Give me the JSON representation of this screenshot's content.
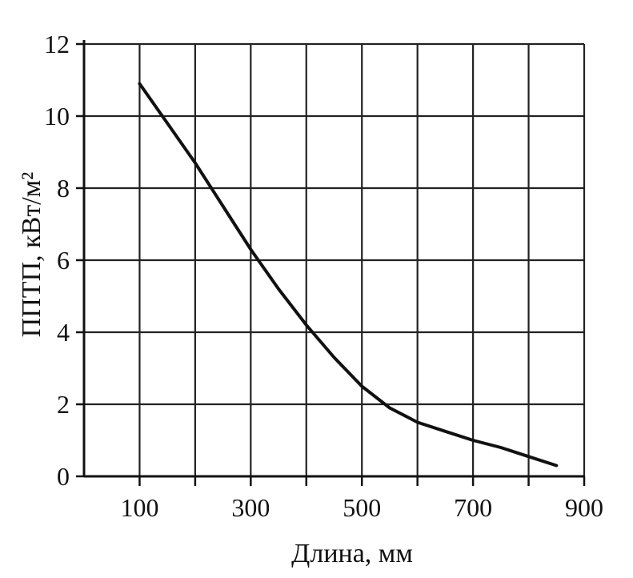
{
  "chart_data": {
    "type": "line",
    "title": "",
    "xlabel": "Длина, мм",
    "ylabel": "ППТП, кВт/м²",
    "xlim": [
      0,
      900
    ],
    "ylim": [
      0,
      12
    ],
    "x_ticks": [
      "100",
      "300",
      "500",
      "700",
      "900"
    ],
    "y_ticks": [
      "0",
      "2",
      "4",
      "6",
      "8",
      "10",
      "12"
    ],
    "grid": true,
    "legend": "none",
    "series": [
      {
        "x": [
          100,
          150,
          200,
          250,
          300,
          350,
          400,
          450,
          500,
          550,
          600,
          650,
          700,
          750,
          800,
          850
        ],
        "y": [
          10.9,
          9.8,
          8.7,
          7.5,
          6.3,
          5.2,
          4.2,
          3.3,
          2.5,
          1.9,
          1.5,
          1.25,
          1.0,
          0.8,
          0.55,
          0.3
        ]
      }
    ]
  }
}
